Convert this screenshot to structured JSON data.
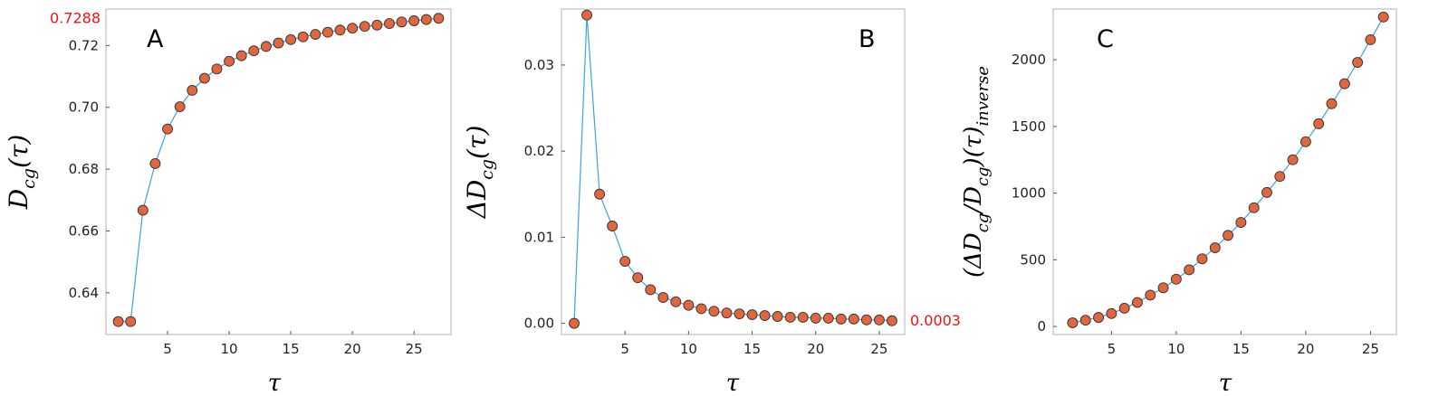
{
  "chart_data": [
    {
      "type": "line",
      "panel_label": "A",
      "xlabel": "τ",
      "ylabel": "D_cg(τ)",
      "ylabel_parts": {
        "main": "D",
        "sub": "cg",
        "tail": "(τ)"
      },
      "xlim": [
        0,
        28
      ],
      "ylim": [
        0.6265,
        0.7318
      ],
      "xticks": [
        5,
        10,
        15,
        20,
        25
      ],
      "yticks": [
        0.64,
        0.66,
        0.68,
        0.7,
        0.72
      ],
      "ytick_labels": [
        "0.64",
        "0.66",
        "0.68",
        "0.70",
        "0.72"
      ],
      "highlight_value": "0.7288",
      "highlight_y": 0.7288,
      "highlight_side": "left",
      "line_color": "#3ba3e0",
      "marker_color": "#e0663e",
      "marker_edge": "#333333",
      "series": [
        {
          "x": [
            1,
            2,
            3,
            4,
            5,
            6,
            7,
            8,
            9,
            10,
            11,
            12,
            13,
            14,
            15,
            16,
            17,
            18,
            19,
            20,
            21,
            22,
            23,
            24,
            25,
            26,
            27
          ],
          "y": [
            0.6307,
            0.6307,
            0.6667,
            0.6818,
            0.693,
            0.7002,
            0.7055,
            0.7094,
            0.7124,
            0.7149,
            0.7167,
            0.7183,
            0.7197,
            0.7208,
            0.7219,
            0.7228,
            0.7236,
            0.7243,
            0.725,
            0.7256,
            0.7262,
            0.7266,
            0.7271,
            0.7276,
            0.728,
            0.7284,
            0.7288
          ]
        }
      ]
    },
    {
      "type": "line",
      "panel_label": "B",
      "xlabel": "τ",
      "ylabel": "ΔD_cg(τ)",
      "ylabel_parts": {
        "main": "ΔD",
        "sub": "cg",
        "tail": "(τ)"
      },
      "xlim": [
        0,
        27
      ],
      "ylim": [
        -0.0013,
        0.0365
      ],
      "xticks": [
        5,
        10,
        15,
        20,
        25
      ],
      "yticks": [
        0.0,
        0.01,
        0.02,
        0.03
      ],
      "ytick_labels": [
        "0.00",
        "0.01",
        "0.02",
        "0.03"
      ],
      "highlight_value": "0.0003",
      "highlight_y": 0.0003,
      "highlight_side": "right",
      "line_color": "#3ba3e0",
      "marker_color": "#e0663e",
      "marker_edge": "#333333",
      "series": [
        {
          "x": [
            1,
            2,
            3,
            4,
            5,
            6,
            7,
            8,
            9,
            10,
            11,
            12,
            13,
            14,
            15,
            16,
            17,
            18,
            19,
            20,
            21,
            22,
            23,
            24,
            25,
            26
          ],
          "y": [
            0.0,
            0.0358,
            0.015,
            0.0113,
            0.0072,
            0.0053,
            0.0039,
            0.003,
            0.0025,
            0.0021,
            0.0017,
            0.0014,
            0.0012,
            0.0011,
            0.001,
            0.0009,
            0.0008,
            0.0007,
            0.0007,
            0.0006,
            0.0006,
            0.0005,
            0.0005,
            0.0004,
            0.0004,
            0.0003
          ]
        }
      ]
    },
    {
      "type": "line",
      "panel_label": "C",
      "xlabel": "τ",
      "ylabel": "(ΔD_cg/D_cg)(τ)_inverse",
      "ylabel_parts": {
        "main": "(ΔD",
        "sub": "cg",
        "mid": "/D",
        "sub2": "cg",
        "tail": ")(τ)",
        "sub3": "inverse"
      },
      "xlim": [
        0.5,
        27
      ],
      "ylim": [
        -60,
        2380
      ],
      "xticks": [
        5,
        10,
        15,
        20,
        25
      ],
      "yticks": [
        0,
        500,
        1000,
        1500,
        2000
      ],
      "ytick_labels": [
        "0",
        "500",
        "1000",
        "1500",
        "2000"
      ],
      "line_color": "#3ba3e0",
      "marker_color": "#e0663e",
      "marker_edge": "#333333",
      "series": [
        {
          "x": [
            2,
            3,
            4,
            5,
            6,
            7,
            8,
            9,
            10,
            11,
            12,
            13,
            14,
            15,
            16,
            17,
            18,
            19,
            20,
            21,
            22,
            23,
            24,
            25,
            26
          ],
          "y": [
            28,
            47,
            68,
            97,
            137,
            180,
            235,
            290,
            355,
            425,
            507,
            590,
            683,
            780,
            890,
            1005,
            1125,
            1250,
            1385,
            1520,
            1670,
            1820,
            1980,
            2150,
            2320
          ]
        }
      ]
    }
  ]
}
